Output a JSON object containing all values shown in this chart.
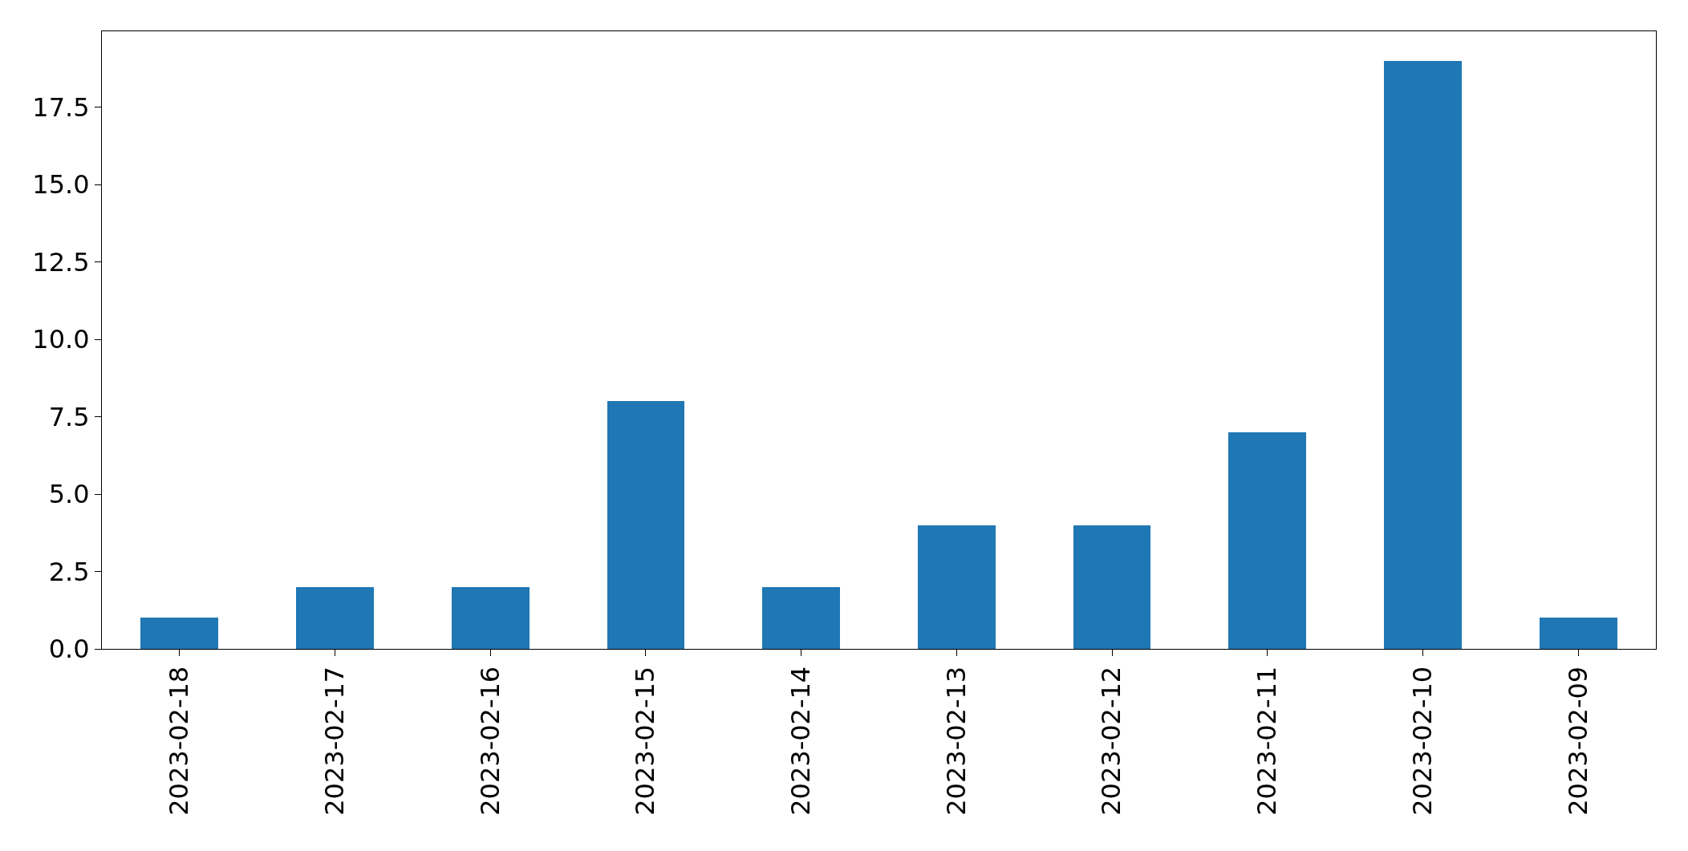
{
  "chart_data": {
    "type": "bar",
    "categories": [
      "2023-02-18",
      "2023-02-17",
      "2023-02-16",
      "2023-02-15",
      "2023-02-14",
      "2023-02-13",
      "2023-02-12",
      "2023-02-11",
      "2023-02-10",
      "2023-02-09"
    ],
    "values": [
      1,
      2,
      2,
      8,
      2,
      4,
      4,
      7,
      19,
      1
    ],
    "color": "#1f77b4",
    "ylim": [
      0,
      19.95
    ],
    "yticks": [
      {
        "value": 0,
        "label": "0.0"
      },
      {
        "value": 2.5,
        "label": "2.5"
      },
      {
        "value": 5,
        "label": "5.0"
      },
      {
        "value": 7.5,
        "label": "7.5"
      },
      {
        "value": 10,
        "label": "10.0"
      },
      {
        "value": 12.5,
        "label": "12.5"
      },
      {
        "value": 15,
        "label": "15.0"
      },
      {
        "value": 17.5,
        "label": "17.5"
      }
    ],
    "legend": false
  }
}
